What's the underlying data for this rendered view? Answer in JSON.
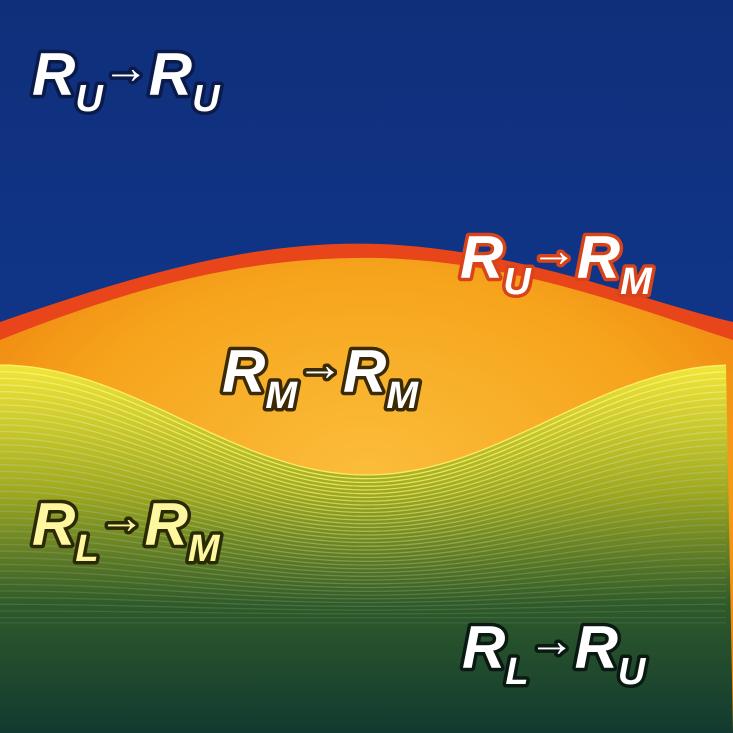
{
  "labels": [
    {
      "from": {
        "letter": "R",
        "sub": "U"
      },
      "arrow": "→",
      "to": {
        "letter": "R",
        "sub": "U"
      }
    },
    {
      "from": {
        "letter": "R",
        "sub": "U"
      },
      "arrow": "→",
      "to": {
        "letter": "R",
        "sub": "M"
      }
    },
    {
      "from": {
        "letter": "R",
        "sub": "M"
      },
      "arrow": "→",
      "to": {
        "letter": "R",
        "sub": "M"
      }
    },
    {
      "from": {
        "letter": "R",
        "sub": "L"
      },
      "arrow": "→",
      "to": {
        "letter": "R",
        "sub": "M"
      }
    },
    {
      "from": {
        "letter": "R",
        "sub": "L"
      },
      "arrow": "→",
      "to": {
        "letter": "R",
        "sub": "U"
      }
    }
  ]
}
